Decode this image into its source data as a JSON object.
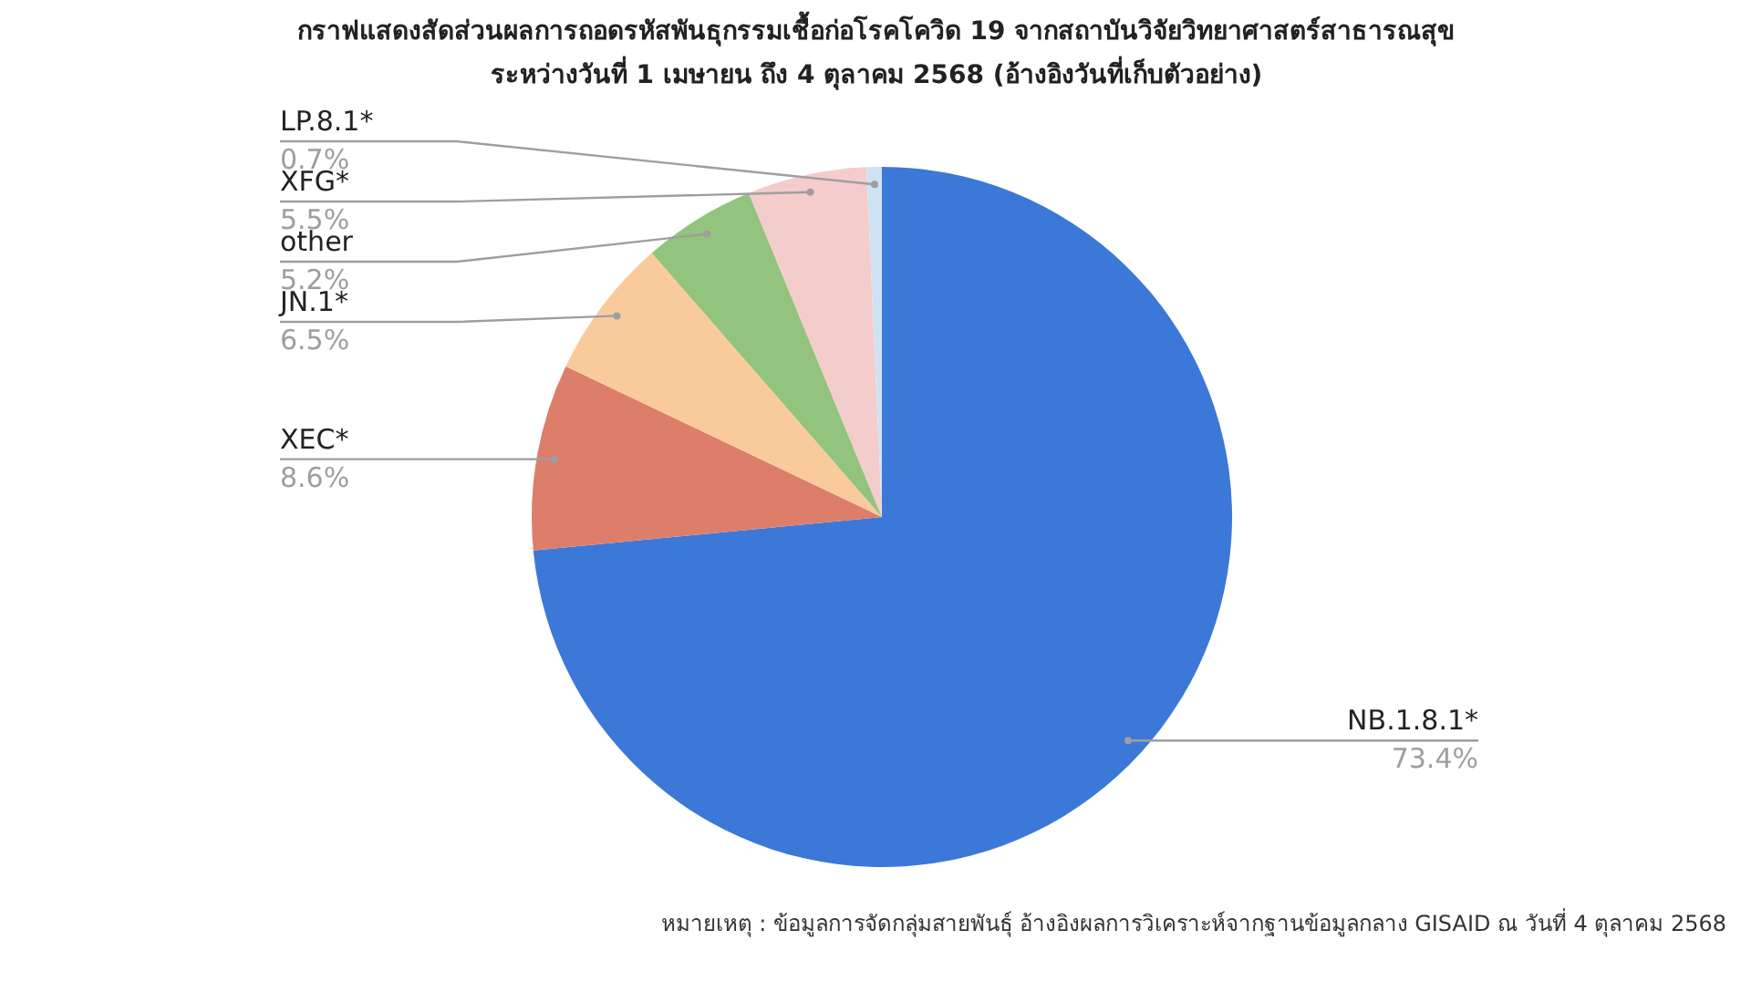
{
  "chart_data": {
    "type": "pie",
    "title": "กราฟแสดงสัดส่วนผลการถอดรหัสพันธุกรรมเชื้อก่อโรคโควิด 19 จากสถาบันวิจัยวิทยาศาสตร์สาธารณสุข",
    "subtitle": "ระหว่างวันที่ 1 เมษายน ถึง 4 ตุลาคม 2568 (อ้างอิงวันที่เก็บตัวอย่าง)",
    "categories": [
      "NB.1.8.1*",
      "XEC*",
      "JN.1*",
      "other",
      "XFG*",
      "LP.8.1*"
    ],
    "values": [
      73.4,
      8.6,
      6.5,
      5.2,
      5.5,
      0.7
    ],
    "colors": [
      "#3c78d8",
      "#dd7e6b",
      "#f9cb9c",
      "#93c47d",
      "#f4cccc",
      "#cfe2f3"
    ],
    "value_labels": [
      "73.4%",
      "8.6%",
      "6.5%",
      "5.2%",
      "5.5%",
      "0.7%"
    ],
    "annotations": [
      "หมายเหตุ : ข้อมูลการจัดกลุ่มสายพันธุ์ อ้างอิงผลการวิเคราะห์จากฐานข้อมูลกลาง GISAID ณ วันที่ 4 ตุลาคม 2568"
    ]
  }
}
